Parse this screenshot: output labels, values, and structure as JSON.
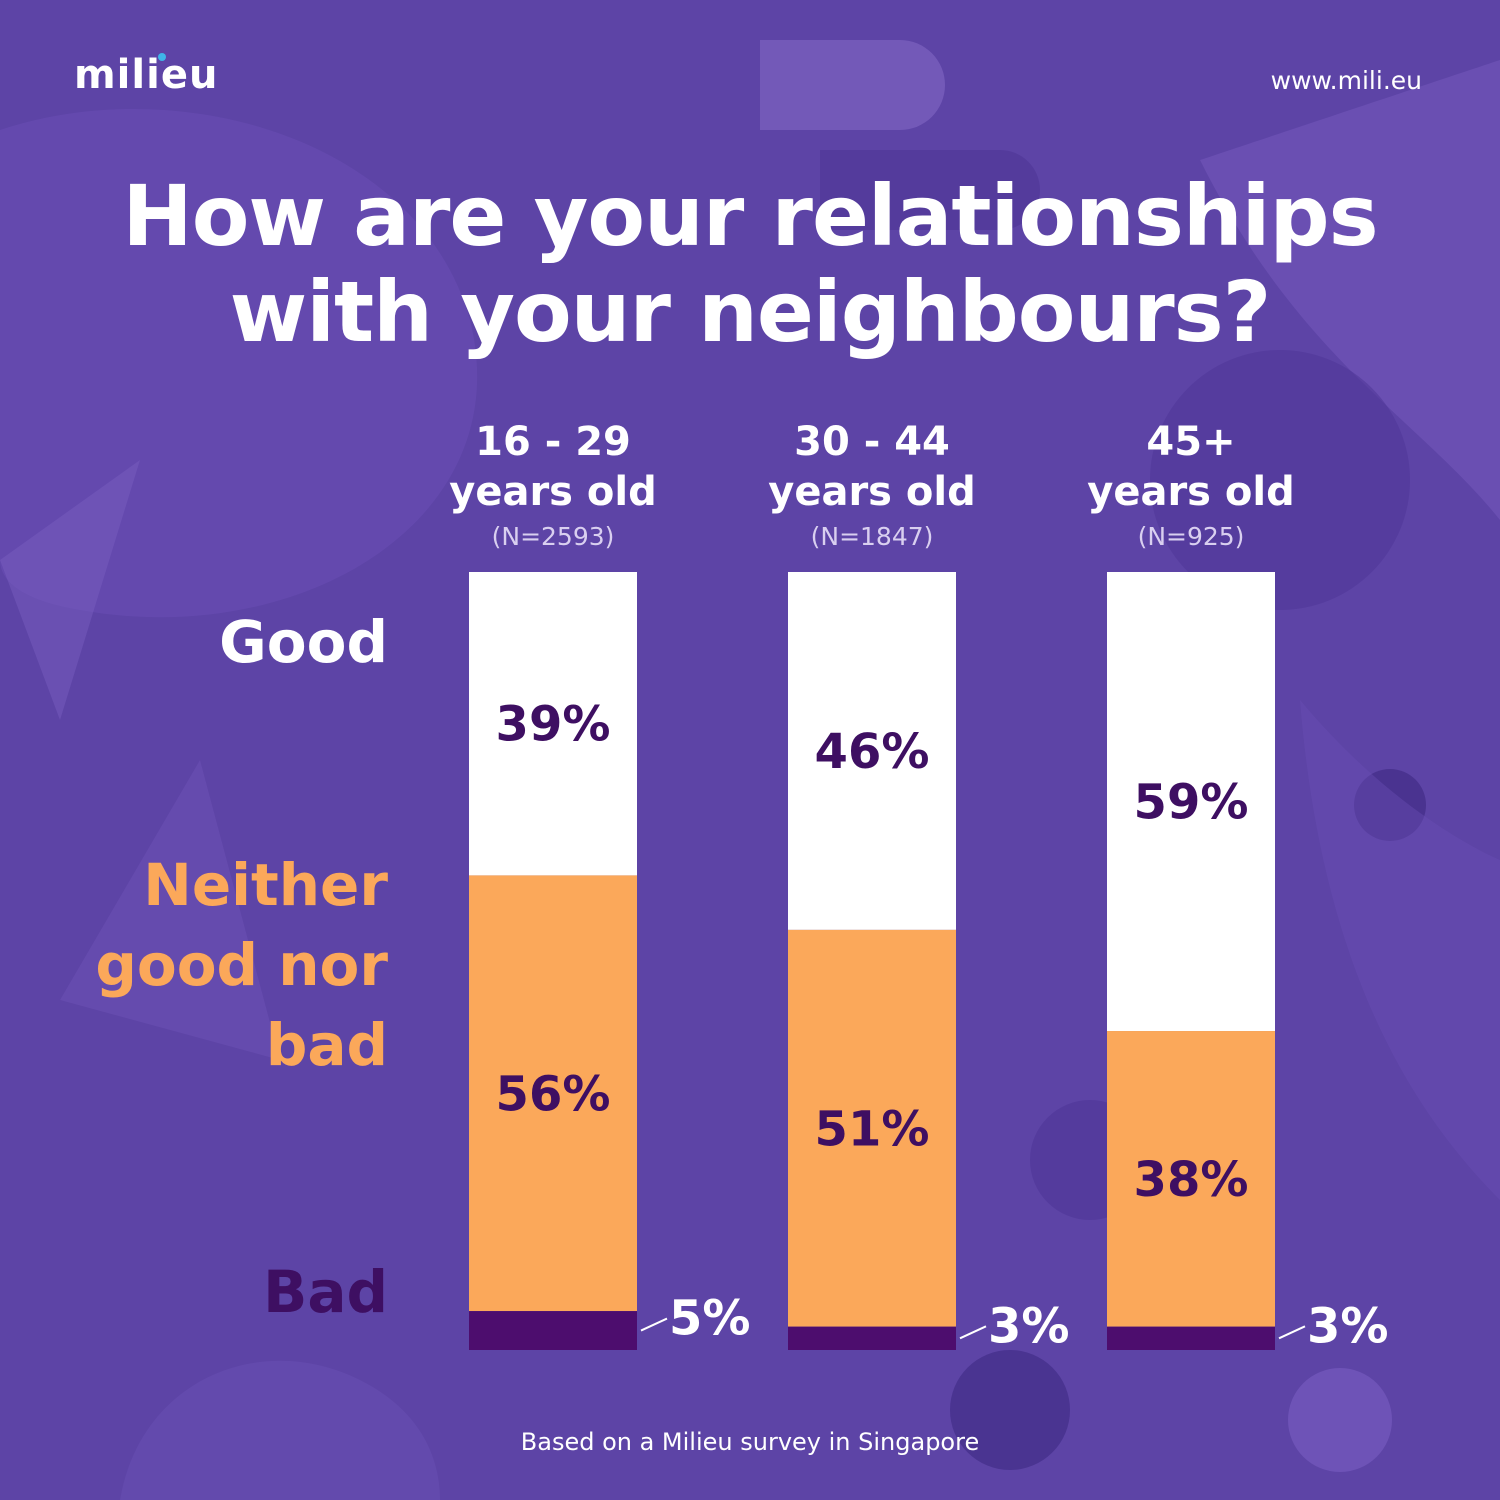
{
  "brand": {
    "logo_text": "milieu",
    "url": "www.mili.eu"
  },
  "title_line1": "How are your relationships",
  "title_line2": "with your neighbours?",
  "caption": "Based on a Milieu survey in Singapore",
  "colors": {
    "background": "#5d44a6",
    "good": "#ffffff",
    "neither": "#fba85a",
    "bad": "#4d0d6e",
    "value_text": "#3e0f62",
    "neither_label": "#fba85a",
    "bad_label": "#3e0f62",
    "logo_dot": "#3fb5e8"
  },
  "chart_data": {
    "type": "bar",
    "stacked": true,
    "categories": [
      "16 - 29 years old",
      "30 - 44 years old",
      "45+ years old"
    ],
    "category_lines": [
      [
        "16 - 29",
        "years old"
      ],
      [
        "30 - 44",
        "years old"
      ],
      [
        "45+",
        "years old"
      ]
    ],
    "sample_sizes": [
      "(N=2593)",
      "(N=1847)",
      "(N=925)"
    ],
    "row_labels": [
      [
        "Good"
      ],
      [
        "Neither",
        "good nor",
        "bad"
      ],
      [
        "Bad"
      ]
    ],
    "series": [
      {
        "name": "Good",
        "values": [
          39,
          46,
          59
        ],
        "labels": [
          "39%",
          "46%",
          "59%"
        ]
      },
      {
        "name": "Neither good nor bad",
        "values": [
          56,
          51,
          38
        ],
        "labels": [
          "56%",
          "51%",
          "38%"
        ]
      },
      {
        "name": "Bad",
        "values": [
          5,
          3,
          3
        ],
        "labels": [
          "5%",
          "3%",
          "3%"
        ]
      }
    ],
    "unit": "%",
    "ylim": [
      0,
      100
    ],
    "grid": false,
    "legend": "none"
  }
}
